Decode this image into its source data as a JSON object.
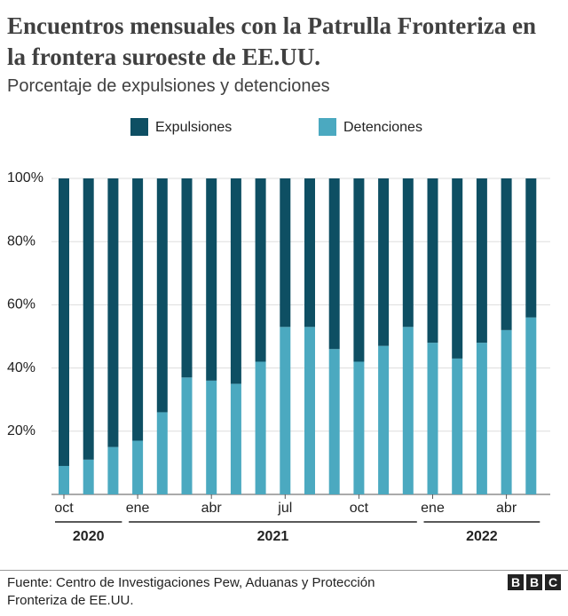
{
  "title": "Encuentros mensuales con la Patrulla Fronteriza en la frontera suroeste de EE.UU.",
  "subtitle": "Porcentaje de expulsiones y detenciones",
  "chart_data": {
    "type": "stacked-bar",
    "categories": [
      "oct",
      null,
      null,
      "ene",
      null,
      null,
      "abr",
      null,
      null,
      "jul",
      null,
      null,
      "oct",
      null,
      null,
      "ene",
      null,
      null,
      "abr",
      null
    ],
    "years": [
      "2020",
      "2021",
      "2022"
    ],
    "series": [
      {
        "name": "Expulsiones",
        "color": "#0e4f63",
        "values": [
          91,
          89,
          85,
          83,
          74,
          63,
          64,
          65,
          58,
          47,
          47,
          54,
          58,
          53,
          47,
          52,
          57,
          52,
          48,
          44
        ]
      },
      {
        "name": "Detenciones",
        "color": "#4ba9c0",
        "values": [
          9,
          11,
          15,
          17,
          26,
          37,
          36,
          35,
          42,
          53,
          53,
          46,
          42,
          47,
          53,
          48,
          43,
          48,
          52,
          56
        ]
      }
    ],
    "ylim": [
      0,
      100
    ],
    "yticks": [
      {
        "value": 20,
        "label": "20%"
      },
      {
        "value": 40,
        "label": "40%"
      },
      {
        "value": 60,
        "label": "60%"
      },
      {
        "value": 80,
        "label": "80%"
      },
      {
        "value": 100,
        "label": "100%"
      }
    ],
    "grid": true
  },
  "source": "Fuente: Centro de Investigaciones Pew, Aduanas y Protección Fronteriza de EE.UU.",
  "logo": [
    "B",
    "B",
    "C"
  ]
}
